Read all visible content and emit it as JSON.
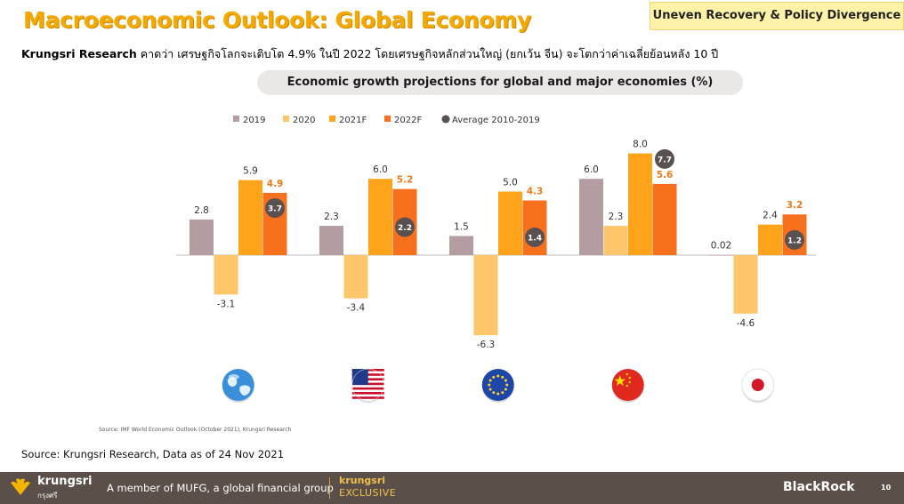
{
  "header": {
    "title": "Macroeconomic Outlook: Global Economy",
    "tag": "Uneven Recovery & Policy Divergence",
    "subtitle_bold": "Krungsri Research",
    "subtitle_rest": " คาดว่า เศรษฐกิจโลกจะเติบโต 4.9% ในปี 2022 โดยเศรษฐกิจหลักส่วนใหญ่ (ยกเว้น จีน) จะโตกว่าค่าเฉลี่ยย้อนหลัง 10 ปี"
  },
  "chart_data": {
    "type": "bar",
    "title": "Economic growth projections for global and major economies (%)",
    "categories": [
      "Global",
      "US",
      "Eurozone",
      "China",
      "Japan"
    ],
    "series": [
      {
        "name": "2019",
        "color": "#b39da0",
        "values": [
          2.8,
          2.3,
          1.5,
          6.0,
          0.02
        ],
        "labels": [
          "2.8",
          "2.3",
          "1.5",
          "6.0",
          "0.02"
        ],
        "label_color": "#333333"
      },
      {
        "name": "2020",
        "color": "#fec56b",
        "values": [
          -3.1,
          -3.4,
          -6.3,
          2.3,
          -4.6
        ],
        "labels": [
          "-3.1",
          "-3.4",
          "-6.3",
          "2.3",
          "-4.6"
        ],
        "label_color": "#333333"
      },
      {
        "name": "2021F",
        "color": "#ffa31a",
        "values": [
          5.9,
          6.0,
          5.0,
          8.0,
          2.4
        ],
        "labels": [
          "5.9",
          "6.0",
          "5.0",
          "8.0",
          "2.4"
        ],
        "label_color": "#333333"
      },
      {
        "name": "2022F",
        "color": "#f7701e",
        "values": [
          4.9,
          5.2,
          4.3,
          5.6,
          3.2
        ],
        "labels": [
          "4.9",
          "5.2",
          "4.3",
          "5.6",
          "3.2"
        ],
        "label_color": "#f07a1a"
      }
    ],
    "average": {
      "name": "Average 2010-2019",
      "color": "#595050",
      "values": [
        3.7,
        2.2,
        1.4,
        7.7,
        1.2
      ],
      "labels": [
        "3.7",
        "2.2",
        "1.4",
        "7.7",
        "1.2"
      ]
    },
    "icons": [
      "globe-icon",
      "us-flag-icon",
      "eu-flag-icon",
      "china-flag-icon",
      "japan-flag-icon"
    ],
    "ylim": [
      -7,
      9
    ],
    "grid": false,
    "legend_position": "top"
  },
  "sources": {
    "chart_source": "Source: IMF World Economic Outlook (October 2021), Krungsri Research",
    "slide_source": "Source: Krungsri Research, Data as of 24 Nov 2021"
  },
  "footer": {
    "logo_name": "krungsri",
    "logo_thai": "กรุงศรี",
    "mufg": "A member of MUFG, a global financial group",
    "exclusive_1": "krungsri",
    "exclusive_2": "EXCLUSIVE",
    "partner": "BlackRock",
    "page": "10"
  }
}
